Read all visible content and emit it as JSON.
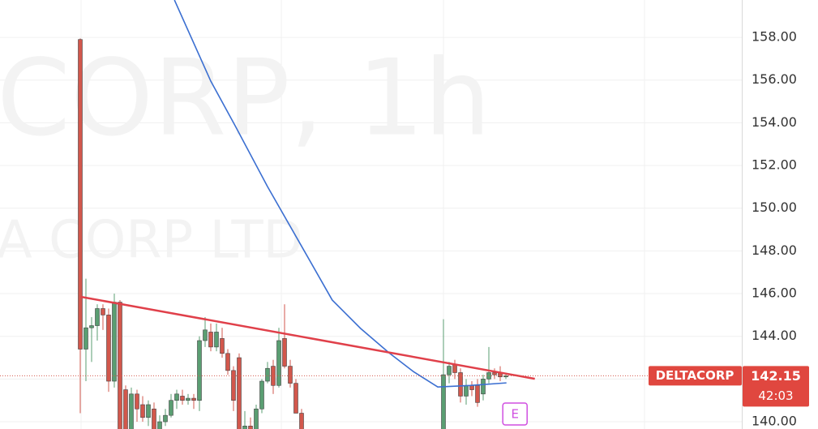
{
  "chart_data": {
    "type": "candlestick",
    "watermark": [
      "CORP, 1h",
      "A CORP LTD"
    ],
    "xlim": [
      -14.14,
      116.57
    ],
    "ylim": [
      139.66,
      159.75
    ],
    "yticks": [
      {
        "value": 140,
        "label": "140.00"
      },
      {
        "value": 142,
        "label": "142.00"
      },
      {
        "value": 144,
        "label": "144.00"
      },
      {
        "value": 146,
        "label": "146.00"
      },
      {
        "value": 148,
        "label": "148.00"
      },
      {
        "value": 150,
        "label": "150.00"
      },
      {
        "value": 152,
        "label": "152.00"
      },
      {
        "value": 154,
        "label": "154.00"
      },
      {
        "value": 156,
        "label": "156.00"
      },
      {
        "value": 158,
        "label": "158.00"
      }
    ],
    "grid": true,
    "up_color": "#5a9e72",
    "down_color": "#d2574c",
    "candles": {
      "open": [
        157.9,
        143.4,
        144.4,
        144.5,
        145.3,
        145.0,
        141.9,
        145.6,
        141.5,
        139.6,
        141.3,
        140.8,
        140.2,
        140.6,
        139.6,
        140.0,
        140.3,
        141.0,
        141.2,
        141.0,
        141.1,
        141.0,
        143.8,
        144.2,
        143.5,
        143.9,
        143.2,
        142.4,
        143.0,
        139.6,
        139.8,
        139.5,
        140.6,
        141.9,
        142.6,
        141.7,
        143.9,
        142.6,
        141.8,
        140.4,
        null,
        null,
        null,
        null,
        null,
        null,
        null,
        null,
        null,
        null,
        null,
        null,
        null,
        null,
        null,
        null,
        null,
        null,
        null,
        null,
        null,
        null,
        null,
        null,
        139.6,
        142.2,
        142.7,
        142.3,
        141.2,
        141.7,
        141.7,
        141.3,
        142.0,
        142.3,
        142.3,
        142.1
      ],
      "high": [
        157.95,
        146.7,
        144.9,
        145.5,
        145.5,
        145.3,
        146.0,
        145.7,
        141.7,
        141.6,
        141.5,
        141.2,
        141.0,
        140.9,
        140.3,
        140.6,
        141.3,
        141.5,
        141.5,
        141.3,
        141.3,
        144.0,
        144.9,
        144.6,
        144.6,
        144.4,
        143.4,
        142.6,
        143.2,
        140.5,
        140.2,
        140.8,
        142.0,
        142.8,
        142.9,
        144.4,
        145.5,
        142.9,
        142.0,
        140.6,
        null,
        null,
        null,
        null,
        null,
        null,
        null,
        null,
        null,
        null,
        null,
        null,
        null,
        null,
        null,
        null,
        null,
        null,
        null,
        null,
        null,
        null,
        null,
        null,
        144.8,
        142.8,
        142.9,
        142.5,
        142.0,
        141.9,
        142.0,
        142.2,
        143.5,
        142.5,
        142.6,
        142.3
      ],
      "low": [
        140.4,
        141.9,
        142.8,
        143.8,
        144.3,
        141.4,
        141.6,
        139.5,
        139.5,
        139.5,
        140.0,
        140.0,
        139.8,
        139.5,
        139.5,
        139.8,
        140.2,
        140.6,
        140.8,
        140.8,
        140.6,
        140.5,
        143.5,
        143.3,
        143.3,
        143.0,
        142.2,
        140.5,
        139.5,
        139.5,
        139.5,
        139.5,
        140.4,
        141.8,
        141.3,
        141.6,
        142.5,
        141.6,
        140.4,
        139.5,
        null,
        null,
        null,
        null,
        null,
        null,
        null,
        null,
        null,
        null,
        null,
        null,
        null,
        null,
        null,
        null,
        null,
        null,
        null,
        null,
        null,
        null,
        null,
        null,
        139.5,
        141.8,
        142.0,
        140.9,
        140.8,
        141.2,
        140.7,
        141.0,
        141.8,
        142.0,
        141.9,
        142.0
      ],
      "close": [
        143.4,
        144.4,
        144.5,
        145.3,
        145.0,
        141.9,
        145.6,
        139.5,
        139.6,
        141.3,
        140.6,
        140.2,
        140.8,
        139.6,
        140.0,
        140.3,
        141.0,
        141.3,
        141.0,
        141.1,
        141.0,
        143.8,
        144.3,
        143.5,
        144.2,
        143.2,
        142.4,
        141.0,
        139.6,
        139.8,
        139.6,
        140.6,
        141.9,
        142.5,
        141.7,
        143.8,
        142.6,
        141.8,
        140.4,
        139.6,
        null,
        null,
        null,
        null,
        null,
        null,
        null,
        null,
        null,
        null,
        null,
        null,
        null,
        null,
        null,
        null,
        null,
        null,
        null,
        null,
        null,
        null,
        null,
        null,
        142.2,
        142.6,
        142.3,
        141.2,
        141.7,
        141.5,
        140.9,
        142.0,
        142.3,
        142.2,
        142.1,
        142.15
      ]
    },
    "moving_average": {
      "color": "#3b6fd1",
      "x": [
        16.6,
        23,
        27.3,
        33,
        38.7,
        44.4,
        49.4,
        54.4,
        58.7,
        63,
        68.7,
        75.1
      ],
      "values": [
        159.75,
        155.95,
        153.86,
        151.01,
        148.36,
        145.7,
        144.37,
        143.23,
        142.35,
        141.63,
        141.7,
        141.82
      ]
    },
    "trendline": {
      "color": "#e0404a",
      "x": [
        0.1,
        80.1
      ],
      "values": [
        145.85,
        142.01
      ]
    },
    "symbol": "DELTACORP",
    "current_price": 142.15,
    "countdown": "42:03",
    "earnings_marker": {
      "x": 76.6,
      "label": "E"
    }
  }
}
